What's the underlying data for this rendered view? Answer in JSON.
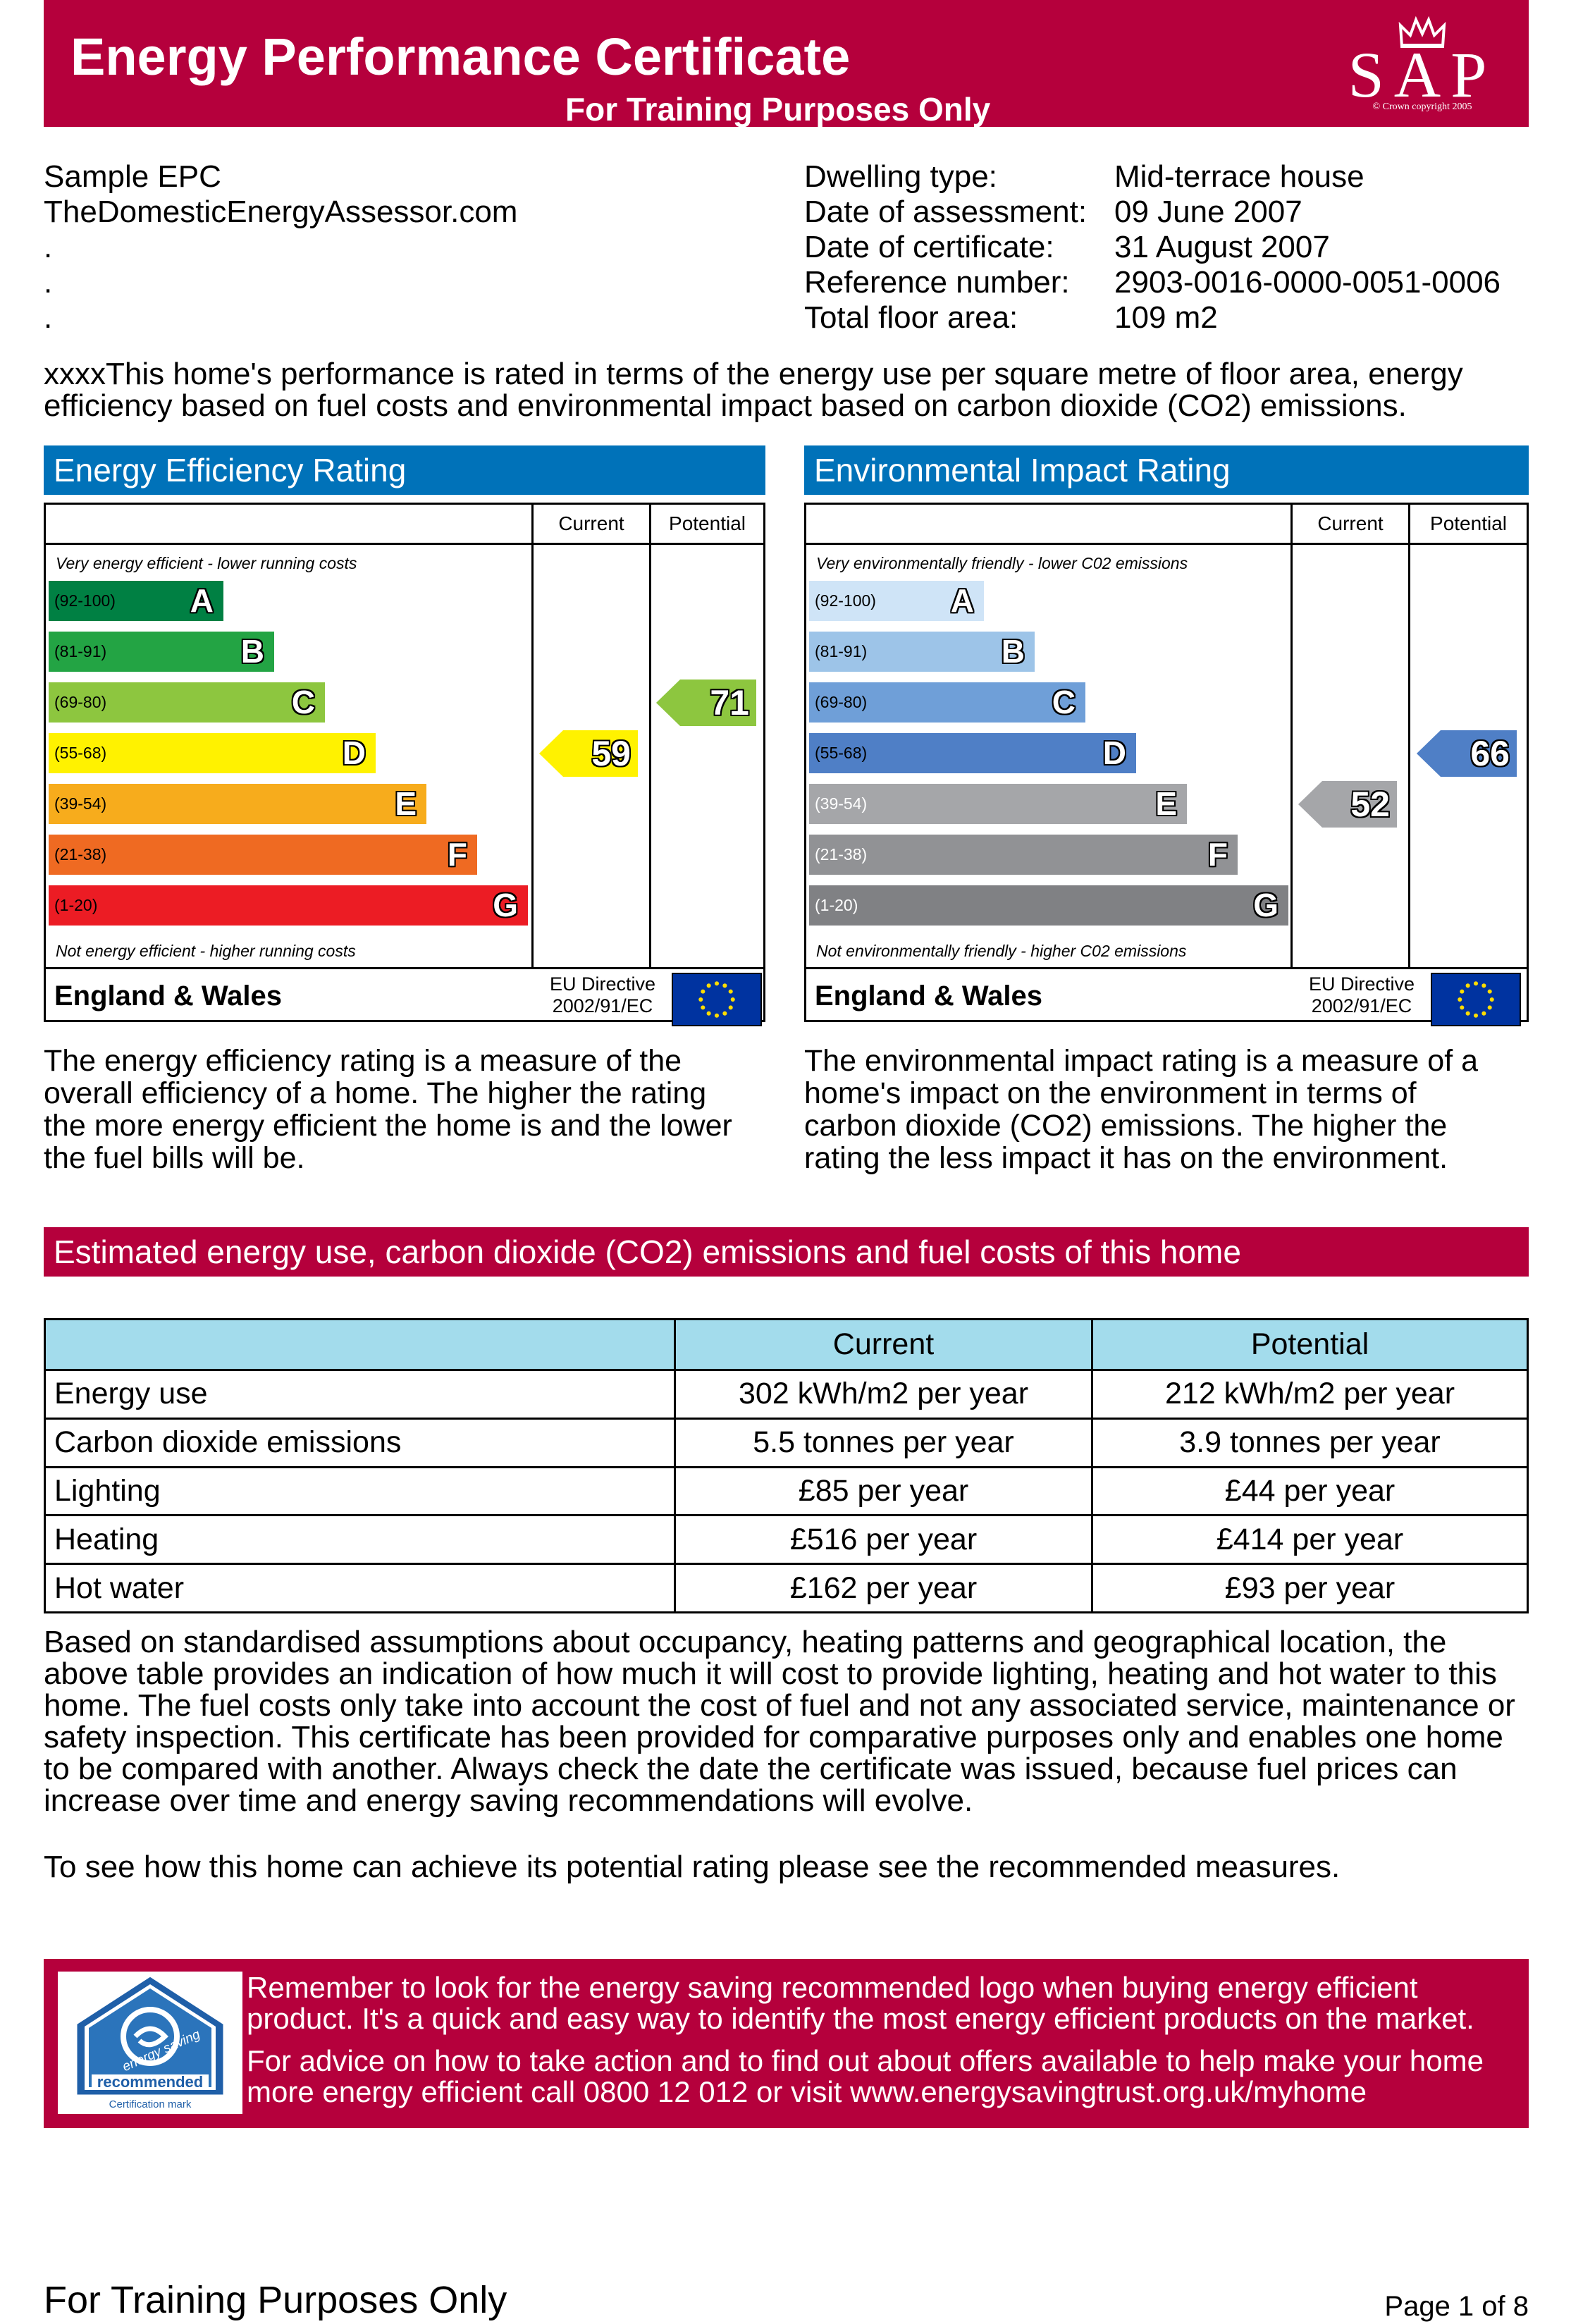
{
  "header": {
    "title": "Energy Performance Certificate",
    "subtitle": "For Training Purposes Only",
    "logo_text": "SAP",
    "logo_copyright": "© Crown copyright 2005"
  },
  "address": [
    "Sample EPC",
    "TheDomesticEnergyAssessor.com",
    ".",
    ".",
    "."
  ],
  "details": [
    {
      "label": "Dwelling type:",
      "value": "Mid-terrace house"
    },
    {
      "label": "Date of assessment:",
      "value": "09 June 2007"
    },
    {
      "label": "Date of certificate:",
      "value": "31 August 2007"
    },
    {
      "label": "Reference number:",
      "value": "2903-0016-0000-0051-0006"
    },
    {
      "label": "Total floor area:",
      "value": "109 m2"
    }
  ],
  "intro": [
    "xxxxThis home's performance is rated in terms of the energy use per square metre of floor area, energy",
    "efficiency based on fuel costs and environmental impact based on carbon dioxide (CO2) emissions."
  ],
  "energy_chart": {
    "title": "Energy Efficiency Rating",
    "col_current": "Current",
    "col_potential": "Potential",
    "top_note": "Very energy efficient - lower running costs",
    "bottom_note": "Not energy efficient - higher running costs",
    "bands": [
      {
        "range": "(92-100)",
        "letter": "A",
        "color": "#008043"
      },
      {
        "range": "(81-91)",
        "letter": "B",
        "color": "#23a444"
      },
      {
        "range": "(69-80)",
        "letter": "C",
        "color": "#8dc63f"
      },
      {
        "range": "(55-68)",
        "letter": "D",
        "color": "#fff200"
      },
      {
        "range": "(39-54)",
        "letter": "E",
        "color": "#f7ac1c"
      },
      {
        "range": "(21-38)",
        "letter": "F",
        "color": "#ef6a22"
      },
      {
        "range": "(1-20)",
        "letter": "G",
        "color": "#ec1c24"
      }
    ],
    "current": "59",
    "current_color": "#fff200",
    "potential": "71",
    "potential_color": "#8dc63f",
    "region": "England & Wales",
    "directive_1": "EU Directive",
    "directive_2": "2002/91/EC",
    "description": [
      "The energy efficiency rating is a measure of the",
      "overall efficiency of a home. The higher the rating",
      "the more energy efficient the home is and the lower",
      "the fuel bills will be."
    ]
  },
  "env_chart": {
    "title": "Environmental Impact Rating",
    "col_current": "Current",
    "col_potential": "Potential",
    "top_note": "Very environmentally friendly - lower C02 emissions",
    "bottom_note": "Not environmentally friendly - higher C02 emissions",
    "bands": [
      {
        "range": "(92-100)",
        "letter": "A",
        "color": "#cfe4f7"
      },
      {
        "range": "(81-91)",
        "letter": "B",
        "color": "#9dc4e8"
      },
      {
        "range": "(69-80)",
        "letter": "C",
        "color": "#6f9fd8"
      },
      {
        "range": "(55-68)",
        "letter": "D",
        "color": "#4f7fc6"
      },
      {
        "range": "(39-54)",
        "letter": "E",
        "color": "#a5a6a9"
      },
      {
        "range": "(21-38)",
        "letter": "F",
        "color": "#919295"
      },
      {
        "range": "(1-20)",
        "letter": "G",
        "color": "#808184"
      }
    ],
    "current": "52",
    "current_color": "#a5a6a9",
    "potential": "66",
    "potential_color": "#4f7fc6",
    "region": "England & Wales",
    "directive_1": "EU Directive",
    "directive_2": "2002/91/EC",
    "description": [
      "The environmental impact rating is a measure of a",
      "home's impact on the environment in terms of",
      "carbon dioxide (CO2) emissions. The higher the",
      "rating the less impact it has on the environment."
    ]
  },
  "costs_title": "Estimated energy use, carbon dioxide (CO2) emissions and fuel costs of this home",
  "costs_table": {
    "headers": [
      "",
      "Current",
      "Potential"
    ],
    "rows": [
      [
        "Energy use",
        "302 kWh/m2 per year",
        "212 kWh/m2 per year"
      ],
      [
        "Carbon dioxide emissions",
        "5.5 tonnes per year",
        "3.9 tonnes per year"
      ],
      [
        "Lighting",
        "£85 per year",
        "£44 per year"
      ],
      [
        "Heating",
        "£516 per year",
        "£414 per year"
      ],
      [
        "Hot water",
        "£162 per year",
        "£93 per year"
      ]
    ]
  },
  "assumptions": [
    "Based on standardised assumptions about occupancy, heating patterns and geographical location, the",
    "above table provides an indication of how much it will cost to provide lighting, heating and hot water to this",
    "home. The fuel costs only take into account the cost of fuel and not any associated service, maintenance or",
    "safety inspection. This certificate has been provided for comparative purposes only and enables one home",
    "to be compared with another. Always check the date the certificate was issued, because fuel prices can",
    "increase over time and energy saving recommendations will evolve."
  ],
  "potential_note": "To see how this home can achieve its potential rating please see the recommended measures.",
  "banner": {
    "logo_line1": "energy saving",
    "logo_line2": "recommended",
    "logo_cert": "Certification mark",
    "para1": [
      "Remember to look for the energy saving recommended logo when buying energy efficient",
      "product. It's a quick and easy way to identify the most energy efficient products on the market."
    ],
    "para2": [
      "For advice on how to take action and to find out about offers available to help make your home",
      "more energy efficient call 0800 12 012 or visit www.energysavingtrust.org.uk/myhome"
    ]
  },
  "footer": {
    "left": "For Training Purposes Only",
    "right": "Page 1 of 8"
  }
}
